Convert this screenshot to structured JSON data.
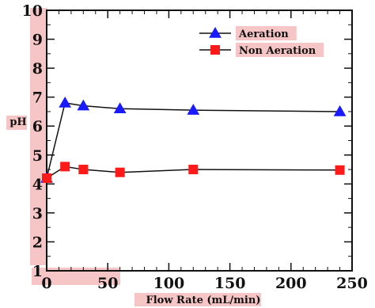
{
  "chart_data": {
    "type": "line",
    "xlabel": "Flow Rate (mL/min)",
    "ylabel": "pH",
    "xlim": [
      0,
      250
    ],
    "ylim": [
      1,
      10
    ],
    "x_ticks": [
      "0",
      "50",
      "100",
      "150",
      "200",
      "250"
    ],
    "y_ticks": [
      "1",
      "2",
      "3",
      "4",
      "5",
      "6",
      "7",
      "8",
      "9",
      "10"
    ],
    "grid": false,
    "legend_position": "top-right",
    "series": [
      {
        "name": "Aeration",
        "marker": "triangle",
        "color": "#1a1aff",
        "x": [
          0,
          15,
          30,
          60,
          120,
          240
        ],
        "y": [
          4.2,
          6.8,
          6.7,
          6.6,
          6.55,
          6.5
        ]
      },
      {
        "name": "Non Aeration",
        "marker": "square",
        "color": "#ff1a1a",
        "x": [
          0,
          15,
          30,
          60,
          120,
          240
        ],
        "y": [
          4.2,
          4.6,
          4.5,
          4.4,
          4.5,
          4.48
        ]
      }
    ],
    "highlight_color": "#f6c6c6"
  }
}
